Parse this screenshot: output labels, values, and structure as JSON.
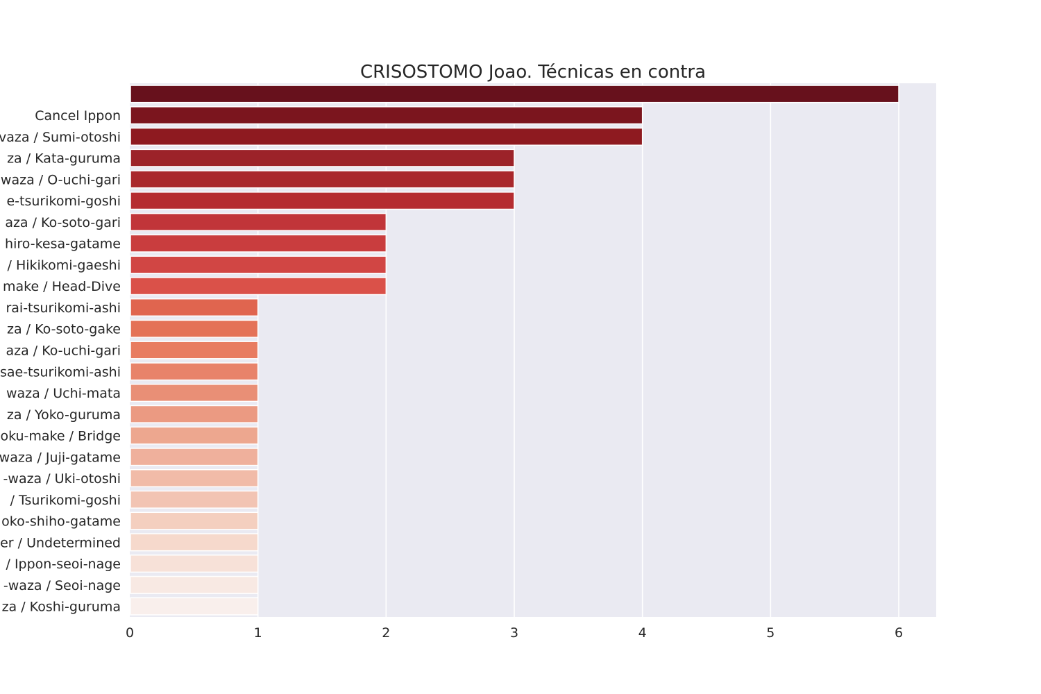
{
  "chart_data": {
    "type": "bar",
    "orientation": "horizontal",
    "title": "CRISOSTOMO Joao. Técnicas en contra",
    "xlabel": "",
    "ylabel": "",
    "xlim": [
      0,
      6.3
    ],
    "x_ticks": [
      "0",
      "1",
      "2",
      "3",
      "4",
      "5",
      "6"
    ],
    "grid": true,
    "categories": [
      "",
      "Cancel Ippon",
      "vaza / Sumi-otoshi",
      "za / Kata-guruma",
      "waza / O-uchi-gari",
      "e-tsurikomi-goshi",
      "aza / Ko-soto-gari",
      "hiro-kesa-gatame",
      "/ Hikikomi-gaeshi",
      "make / Head-Dive",
      "rai-tsurikomi-ashi",
      "za / Ko-soto-gake",
      "aza / Ko-uchi-gari",
      "sae-tsurikomi-ashi",
      "waza / Uchi-mata",
      "za / Yoko-guruma",
      "oku-make / Bridge",
      "waza / Juji-gatame",
      "-waza / Uki-otoshi",
      "/ Tsurikomi-goshi",
      "oko-shiho-gatame",
      "er / Undetermined",
      "/ Ippon-seoi-nage",
      "-waza / Seoi-nage",
      "za / Koshi-guruma"
    ],
    "values": [
      6,
      4,
      4,
      3,
      3,
      3,
      2,
      2,
      2,
      2,
      1,
      1,
      1,
      1,
      1,
      1,
      1,
      1,
      1,
      1,
      1,
      1,
      1,
      1,
      1
    ],
    "colors": [
      "#67111c",
      "#7b151e",
      "#8e1a20",
      "#9c2329",
      "#a9282c",
      "#b52c30",
      "#c13539",
      "#c93d3e",
      "#d14644",
      "#da5149",
      "#e0654f",
      "#e47257",
      "#e87c60",
      "#e8836a",
      "#e98f76",
      "#eb9a82",
      "#eda78f",
      "#efb09c",
      "#f1bba8",
      "#f2c4b3",
      "#f4cfbf",
      "#f6d9cc",
      "#f7e1d8",
      "#f8e9e3",
      "#f9efec"
    ],
    "background": "#eaeaf2",
    "grid_color": "#ffffff"
  }
}
